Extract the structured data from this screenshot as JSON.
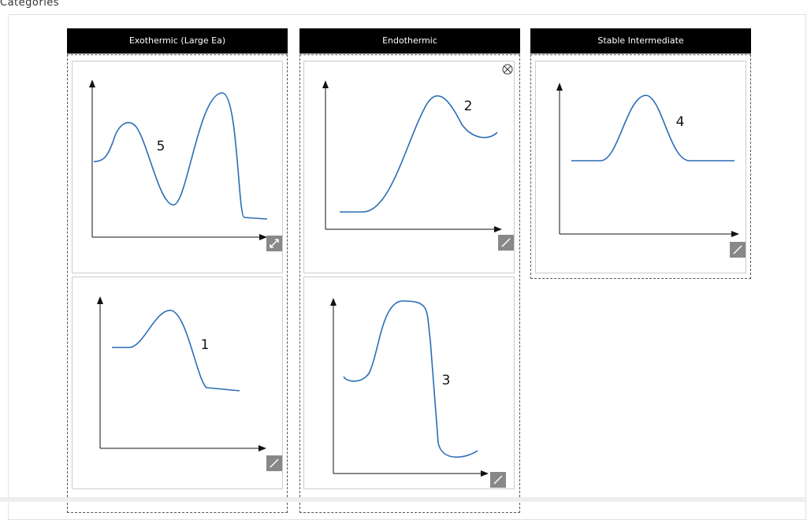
{
  "page": {
    "title": "Categories",
    "categories": [
      {
        "name": "Exothermic (Large Ea)",
        "cards": [
          "5",
          "1"
        ]
      },
      {
        "name": "Endothermic",
        "cards": [
          "2",
          "3"
        ]
      },
      {
        "name": "Stable Intermediate",
        "cards": [
          "4"
        ]
      }
    ]
  }
}
